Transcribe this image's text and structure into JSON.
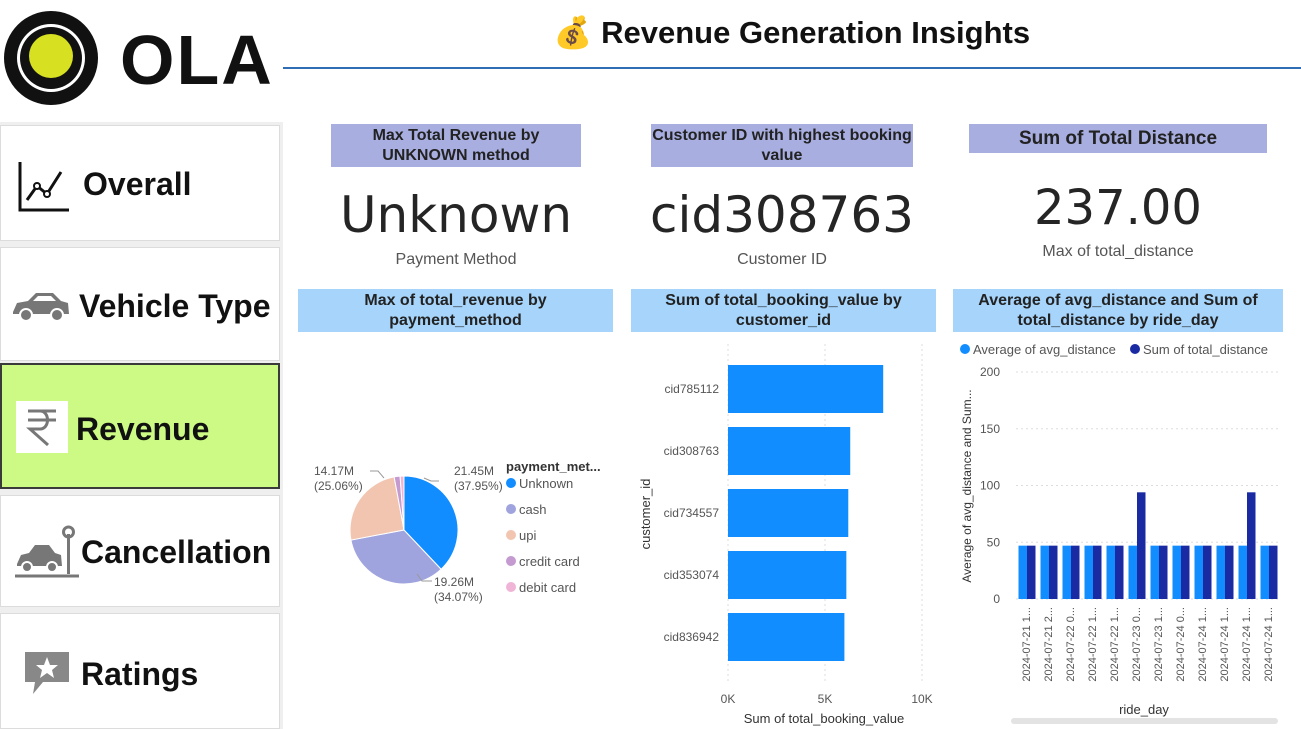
{
  "header": {
    "title": "💰 Revenue Generation Insights"
  },
  "logo": {
    "text": "OLA"
  },
  "sidebar": {
    "items": [
      {
        "label": "Overall",
        "icon": "line-chart-icon",
        "active": false
      },
      {
        "label": "Vehicle Type",
        "icon": "car-icon",
        "active": false
      },
      {
        "label": "Revenue",
        "icon": "rupee-icon",
        "active": true
      },
      {
        "label": "Cancellation",
        "icon": "parked-car-icon",
        "active": false
      },
      {
        "label": "Ratings",
        "icon": "star-comment-icon",
        "active": false
      }
    ]
  },
  "cards": [
    {
      "title": "Max Total Revenue by UNKNOWN method",
      "value": "Unknown",
      "sub": "Payment Method"
    },
    {
      "title": "Customer ID with highest booking value",
      "value": "cid308763",
      "sub": "Customer ID"
    },
    {
      "title": "Sum of Total Distance",
      "value": "237.00",
      "sub": "Max of total_distance"
    }
  ],
  "colors": {
    "accent_active": "#ccfa84",
    "card_header": "#a8aee0",
    "chart_header": "#a6d4fb",
    "rule": "#2f6db5"
  },
  "chart_data": [
    {
      "type": "pie",
      "title": "Max of total_revenue by payment_method",
      "legend_title": "payment_met...",
      "slices": [
        {
          "label": "Unknown",
          "value": 21.45,
          "display": "21.45M",
          "pct": "(37.95%)",
          "color": "#118dff"
        },
        {
          "label": "cash",
          "value": 19.26,
          "display": "19.26M",
          "pct": "(34.07%)",
          "color": "#a0a4de"
        },
        {
          "label": "upi",
          "value": 14.17,
          "display": "14.17M",
          "pct": "(25.06%)",
          "color": "#f2c5b1"
        },
        {
          "label": "credit card",
          "value": 1.0,
          "display": "",
          "pct": "",
          "color": "#c49ad0"
        },
        {
          "label": "debit card",
          "value": 0.65,
          "display": "",
          "pct": "",
          "color": "#f0b4d6"
        }
      ],
      "legend_position": "right"
    },
    {
      "type": "bar",
      "orientation": "horizontal",
      "title": "Sum of total_booking_value by customer_id",
      "categories": [
        "cid785112",
        "cid308763",
        "cid734557",
        "cid353074",
        "cid836942"
      ],
      "values": [
        8000,
        6300,
        6200,
        6100,
        6000
      ],
      "xlabel": "Sum of total_booking_value",
      "ylabel": "customer_id",
      "xlim": [
        0,
        10000
      ],
      "xticks": [
        "0K",
        "5K",
        "10K"
      ],
      "color": "#118dff",
      "grid": true
    },
    {
      "type": "bar",
      "title": "Average of avg_distance and Sum of total_distance by ride_day",
      "categories": [
        "2024-07-21 1...",
        "2024-07-21 2...",
        "2024-07-22 0...",
        "2024-07-22 1...",
        "2024-07-22 1...",
        "2024-07-23 0...",
        "2024-07-23 1...",
        "2024-07-24 0...",
        "2024-07-24 1...",
        "2024-07-24 1...",
        "2024-07-24 1...",
        "2024-07-24 1..."
      ],
      "series": [
        {
          "name": "Average of avg_distance",
          "values": [
            47,
            47,
            47,
            47,
            47,
            47,
            47,
            47,
            47,
            47,
            47,
            47
          ],
          "color": "#118dff"
        },
        {
          "name": "Sum of total_distance",
          "values": [
            47,
            47,
            47,
            47,
            47,
            94,
            47,
            47,
            47,
            47,
            94,
            47
          ],
          "color": "#1a2aa3"
        }
      ],
      "xlabel": "ride_day",
      "ylabel": "Average of avg_distance and Sum...",
      "ylim": [
        0,
        200
      ],
      "yticks": [
        0,
        50,
        100,
        150,
        200
      ],
      "legend_position": "top-left",
      "grid": true
    }
  ]
}
